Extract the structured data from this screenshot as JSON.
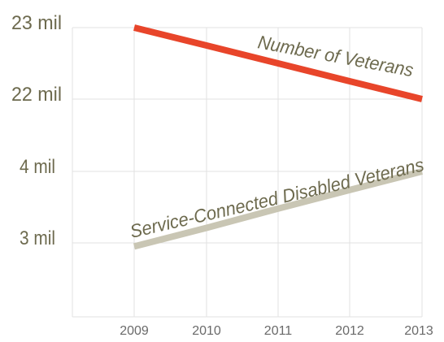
{
  "chart_data": {
    "type": "line",
    "title": "",
    "xlabel": "",
    "ylabel": "",
    "x": [
      "2009",
      "2010",
      "2011",
      "2012",
      "2013"
    ],
    "y_ticks": [
      "23 mil",
      "22 mil",
      "4 mil",
      "3 mil"
    ],
    "y_axis_break": true,
    "grid": true,
    "series": [
      {
        "name": "Number of Veterans",
        "values": [
          23.0,
          22.75,
          22.5,
          22.25,
          22.0
        ],
        "unit": "mil",
        "color": "#e8452a",
        "label_color": "#6d6a4e"
      },
      {
        "name": "Service-Connected Disabled Veterans",
        "values": [
          2.95,
          3.21,
          3.48,
          3.74,
          4.0
        ],
        "unit": "mil",
        "color": "#c9c6b4",
        "label_color": "#6d6a4e"
      }
    ]
  }
}
